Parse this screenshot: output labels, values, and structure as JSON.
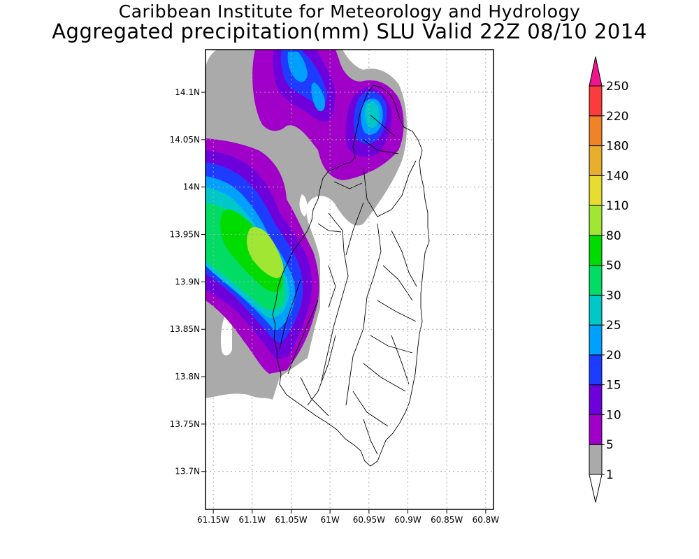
{
  "titles": {
    "line1": "Caribbean Institute for Meteorology and Hydrology",
    "line2": "Aggregated precipitation(mm) SLU Valid 22Z 08/10 2014"
  },
  "map": {
    "lat_ticks": [
      "14.1N",
      "14.05N",
      "14N",
      "13.95N",
      "13.9N",
      "13.85N",
      "13.8N",
      "13.75N",
      "13.7N"
    ],
    "lon_ticks": [
      "61.15W",
      "61.1W",
      "61.05W",
      "61W",
      "60.95W",
      "60.9W",
      "60.85W",
      "60.8W"
    ],
    "lat_range": [
      13.66,
      14.145
    ],
    "lon_range": [
      -61.16,
      -60.79
    ]
  },
  "colorbar": {
    "levels": [
      "1",
      "5",
      "10",
      "15",
      "20",
      "25",
      "30",
      "50",
      "80",
      "110",
      "140",
      "180",
      "220",
      "250"
    ],
    "colors": [
      "#aaaaaa",
      "#a000c8",
      "#6e00dc",
      "#1e3cff",
      "#00a0ff",
      "#00c8c8",
      "#00dc64",
      "#00dc00",
      "#a0e632",
      "#e6dc32",
      "#e6af2d",
      "#f08228",
      "#fa3c3c",
      "#f0148c"
    ]
  }
}
